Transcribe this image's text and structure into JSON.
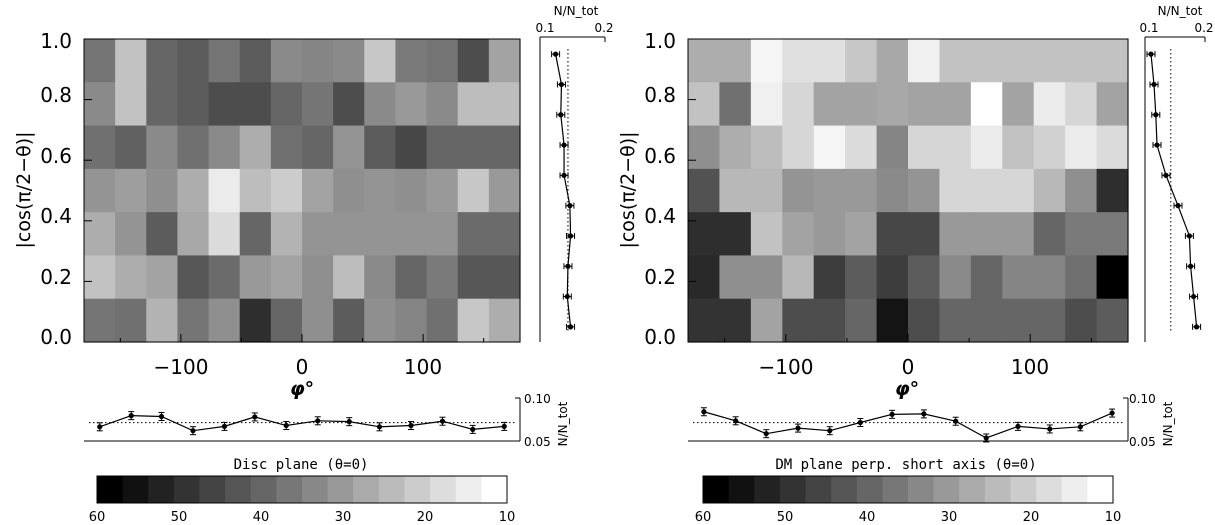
{
  "chart_data": [
    {
      "type": "heatmap",
      "title": "Disc plane (θ=0)",
      "xlabel": "φ°",
      "ylabel": "|cos(π/2−θ)|",
      "xlim": [
        -180,
        180
      ],
      "ylim": [
        0,
        1
      ],
      "xticks": [
        "−100",
        "0",
        "100"
      ],
      "yticks": [
        "0.0",
        "0.2",
        "0.4",
        "0.6",
        "0.8",
        "1.0"
      ],
      "grid": false,
      "colorbar": {
        "range": [
          60,
          10
        ],
        "ticks": [
          "60",
          "50",
          "40",
          "30",
          "20",
          "10"
        ]
      },
      "z": [
        [
          37,
          22,
          40,
          42,
          37,
          42,
          33,
          34,
          33,
          21,
          36,
          37,
          45,
          28
        ],
        [
          33,
          22,
          40,
          42,
          45,
          45,
          40,
          37,
          45,
          33,
          30,
          33,
          23,
          23
        ],
        [
          38,
          41,
          33,
          38,
          33,
          26,
          38,
          40,
          31,
          42,
          46,
          40,
          40,
          40
        ],
        [
          31,
          29,
          32,
          26,
          14,
          23,
          20,
          28,
          32,
          31,
          32,
          30,
          21,
          30
        ],
        [
          26,
          31,
          42,
          27,
          17,
          40,
          25,
          31,
          31,
          31,
          31,
          31,
          39,
          39
        ],
        [
          22,
          26,
          28,
          43,
          39,
          30,
          28,
          32,
          23,
          33,
          40,
          36,
          43,
          43
        ],
        [
          37,
          38,
          25,
          37,
          32,
          51,
          40,
          32,
          42,
          32,
          34,
          38,
          21,
          26
        ]
      ],
      "right_panel": {
        "xlabel": "N/N_tot",
        "xticks": [
          "0.1",
          "0.2"
        ],
        "xlim": [
          0.1,
          0.2
        ],
        "y": [
          0.05,
          0.15,
          0.25,
          0.35,
          0.45,
          0.55,
          0.65,
          0.75,
          0.85,
          0.95
        ],
        "values": [
          0.147,
          0.142,
          0.143,
          0.147,
          0.146,
          0.137,
          0.137,
          0.132,
          0.133,
          0.124
        ],
        "reference": 0.143
      },
      "bottom_panel": {
        "ylabel": "N/N_tot",
        "yticks": [
          "0.10",
          "0.05"
        ],
        "ylim": [
          0.05,
          0.1
        ],
        "x": [
          -167,
          -141,
          -116,
          -90,
          -64,
          -39,
          -13,
          13,
          39,
          64,
          90,
          116,
          141,
          167
        ],
        "values": [
          0.0665,
          0.0795,
          0.0785,
          0.062,
          0.067,
          0.078,
          0.068,
          0.0735,
          0.0725,
          0.0665,
          0.068,
          0.073,
          0.0635,
          0.067
        ],
        "reference": 0.0714
      }
    },
    {
      "type": "heatmap",
      "title": "DM plane perp. short axis (θ=0)",
      "xlabel": "φ°",
      "ylabel": "",
      "xlim": [
        -180,
        180
      ],
      "ylim": [
        0,
        1
      ],
      "xticks": [
        "−100",
        "0",
        "100"
      ],
      "yticks": [
        "0.0",
        "0.2",
        "0.4",
        "0.6",
        "0.8",
        "1.0"
      ],
      "grid": false,
      "colorbar": {
        "range": [
          60,
          10
        ],
        "ticks": [
          "60",
          "50",
          "40",
          "30",
          "20",
          "10"
        ]
      },
      "z": [
        [
          26,
          26,
          12,
          16,
          16,
          21,
          27,
          13,
          22,
          22,
          22,
          22,
          22,
          22
        ],
        [
          22,
          38,
          13,
          18,
          28,
          28,
          27,
          28,
          28,
          10,
          28,
          14,
          18,
          28
        ],
        [
          32,
          26,
          23,
          18,
          12,
          17,
          34,
          18,
          18,
          14,
          22,
          19,
          14,
          17
        ],
        [
          44,
          24,
          24,
          31,
          30,
          30,
          33,
          31,
          18,
          18,
          18,
          24,
          32,
          51
        ],
        [
          51,
          51,
          22,
          28,
          30,
          28,
          46,
          46,
          30,
          30,
          30,
          40,
          36,
          36
        ],
        [
          52,
          32,
          32,
          24,
          48,
          42,
          48,
          42,
          33,
          40,
          34,
          34,
          38,
          62
        ],
        [
          50,
          50,
          28,
          45,
          45,
          40,
          56,
          45,
          40,
          40,
          40,
          40,
          45,
          42
        ]
      ],
      "right_panel": {
        "xlabel": "N/N_tot",
        "xticks": [
          "0.1",
          "0.2"
        ],
        "xlim": [
          0.1,
          0.2
        ],
        "y": [
          0.05,
          0.15,
          0.25,
          0.35,
          0.45,
          0.55,
          0.65,
          0.75,
          0.85,
          0.95
        ],
        "values": [
          0.186,
          0.181,
          0.176,
          0.174,
          0.155,
          0.135,
          0.12,
          0.118,
          0.115,
          0.11
        ],
        "reference": 0.143
      },
      "bottom_panel": {
        "ylabel": "N/N_tot",
        "yticks": [
          "0.10",
          "0.05"
        ],
        "ylim": [
          0.05,
          0.1
        ],
        "x": [
          -167,
          -141,
          -116,
          -90,
          -64,
          -39,
          -13,
          13,
          39,
          64,
          90,
          116,
          141,
          167
        ],
        "values": [
          0.084,
          0.0735,
          0.0585,
          0.065,
          0.062,
          0.0715,
          0.081,
          0.0815,
          0.073,
          0.0535,
          0.067,
          0.064,
          0.0665,
          0.0825
        ],
        "reference": 0.0714
      }
    }
  ]
}
